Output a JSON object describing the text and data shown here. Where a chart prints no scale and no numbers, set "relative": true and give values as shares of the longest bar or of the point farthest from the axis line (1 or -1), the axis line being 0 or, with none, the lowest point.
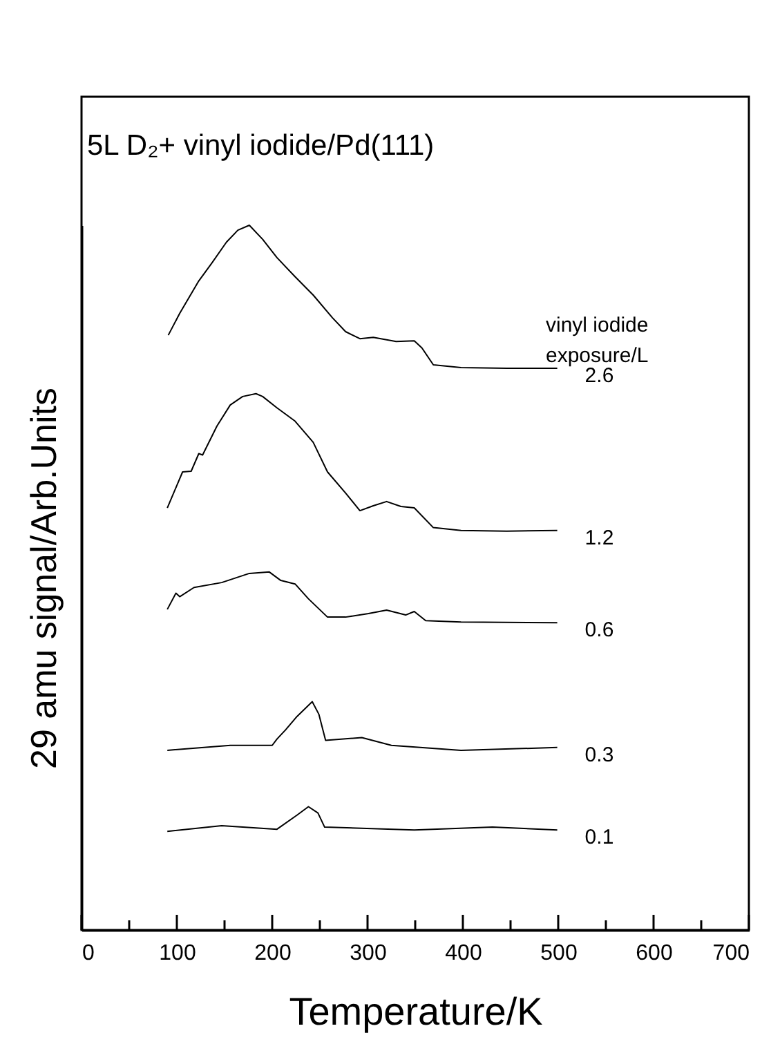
{
  "chart_data": {
    "type": "line",
    "title": "5L D₂+ vinyl iodide/Pd(111)",
    "xlabel": "Temperature/K",
    "ylabel": "29 amu signal/Arb.Units",
    "relative": true,
    "xlim": [
      0,
      700
    ],
    "xticks": [
      0,
      {
        "value": 50,
        "label": null
      },
      100,
      {
        "value": 150,
        "label": null
      },
      200,
      {
        "value": 250,
        "label": null
      },
      300,
      {
        "value": 350,
        "label": null
      },
      400,
      {
        "value": 450,
        "label": null
      },
      500,
      {
        "value": 550,
        "label": null
      },
      600,
      {
        "value": 650,
        "label": null
      },
      700
    ],
    "annotations": [
      "vinyl iodide exposure/L"
    ],
    "series": [
      {
        "name": "2.6",
        "color": "#000000",
        "x": [
          91,
          103,
          123,
          137,
          152,
          164,
          176,
          190,
          205,
          224,
          243,
          263,
          277,
          292,
          306,
          330,
          349,
          357,
          369,
          398,
          446,
          499
        ],
        "values": [
          0.844,
          0.875,
          0.921,
          0.947,
          0.976,
          0.993,
          1.0,
          0.98,
          0.954,
          0.927,
          0.901,
          0.869,
          0.849,
          0.839,
          0.841,
          0.835,
          0.836,
          0.826,
          0.802,
          0.798,
          0.797,
          0.797
        ]
      },
      {
        "name": "1.2",
        "color": "#000000",
        "x": [
          90,
          106,
          115,
          123,
          127,
          142,
          156,
          169,
          183,
          190,
          205,
          224,
          243,
          258,
          277,
          292,
          306,
          320,
          335,
          349,
          369,
          398,
          446,
          499
        ],
        "values": [
          0.599,
          0.65,
          0.651,
          0.676,
          0.674,
          0.715,
          0.745,
          0.757,
          0.761,
          0.757,
          0.741,
          0.722,
          0.692,
          0.65,
          0.62,
          0.595,
          0.602,
          0.608,
          0.601,
          0.599,
          0.571,
          0.567,
          0.566,
          0.567
        ]
      },
      {
        "name": "0.6",
        "color": "#000000",
        "x": [
          90,
          99,
          103,
          118,
          147,
          176,
          197,
          209,
          224,
          238,
          258,
          277,
          301,
          320,
          340,
          349,
          361,
          398,
          499
        ],
        "values": [
          0.455,
          0.478,
          0.473,
          0.486,
          0.493,
          0.506,
          0.508,
          0.496,
          0.491,
          0.47,
          0.444,
          0.444,
          0.449,
          0.454,
          0.447,
          0.452,
          0.439,
          0.437,
          0.436
        ]
      },
      {
        "name": "0.3",
        "color": "#000000",
        "x": [
          90,
          156,
          200,
          205,
          214,
          226,
          242,
          249,
          256,
          294,
          325,
          398,
          499
        ],
        "values": [
          0.255,
          0.262,
          0.262,
          0.271,
          0.284,
          0.303,
          0.324,
          0.306,
          0.269,
          0.273,
          0.262,
          0.255,
          0.259
        ]
      },
      {
        "name": "0.1",
        "color": "#000000",
        "x": [
          90,
          147,
          205,
          226,
          238,
          248,
          255,
          349,
          431,
          499
        ],
        "values": [
          0.14,
          0.148,
          0.143,
          0.163,
          0.175,
          0.166,
          0.146,
          0.142,
          0.146,
          0.142
        ]
      }
    ]
  }
}
